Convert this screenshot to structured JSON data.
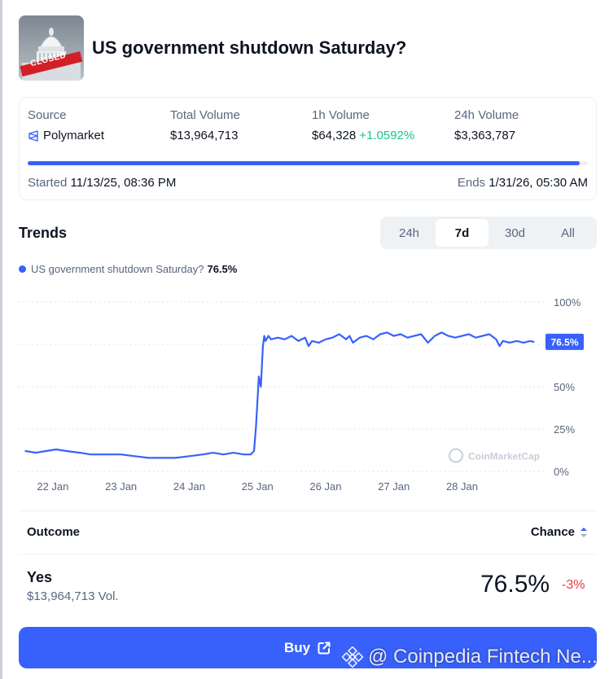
{
  "market": {
    "title": "US government shutdown Saturday?",
    "thumbnail_badge": "CLOSED"
  },
  "info": {
    "source_label": "Source",
    "source_value": "Polymarket",
    "total_volume_label": "Total Volume",
    "total_volume_value": "$13,964,713",
    "h1_volume_label": "1h Volume",
    "h1_volume_value": "$64,328",
    "h1_volume_change": "+1.0592%",
    "h24_volume_label": "24h Volume",
    "h24_volume_value": "$3,363,787",
    "progress_fraction": 0.985,
    "started_label": "Started",
    "started_value": "11/13/25, 08:36 PM",
    "ends_label": "Ends",
    "ends_value": "1/31/26, 05:30 AM"
  },
  "trends": {
    "title": "Trends",
    "tabs": [
      "24h",
      "7d",
      "30d",
      "All"
    ],
    "active_tab": "7d",
    "legend_name": "US government shutdown Saturday?",
    "legend_value": "76.5%"
  },
  "chart_data": {
    "type": "line",
    "x_ticks": [
      "22 Jan",
      "23 Jan",
      "24 Jan",
      "25 Jan",
      "26 Jan",
      "27 Jan",
      "28 Jan"
    ],
    "y_ticks": [
      "0%",
      "25%",
      "50%",
      "100%"
    ],
    "ylim": [
      0,
      100
    ],
    "grid": true,
    "last_value_label": "76.5%",
    "watermark": "CoinMarketCap",
    "line_color": "#3861fb",
    "series": [
      {
        "name": "US government shutdown Saturday?",
        "x": [
          21.6,
          21.75,
          21.9,
          22.05,
          22.2,
          22.4,
          22.55,
          22.75,
          23.0,
          23.2,
          23.4,
          23.6,
          23.8,
          24.0,
          24.2,
          24.35,
          24.5,
          24.65,
          24.8,
          24.9,
          24.95,
          24.98,
          25.02,
          25.05,
          25.08,
          25.1,
          25.12,
          25.16,
          25.2,
          25.3,
          25.4,
          25.5,
          25.6,
          25.7,
          25.75,
          25.8,
          25.9,
          26.0,
          26.1,
          26.2,
          26.3,
          26.35,
          26.4,
          26.5,
          26.6,
          26.7,
          26.8,
          26.9,
          27.0,
          27.1,
          27.2,
          27.3,
          27.4,
          27.5,
          27.6,
          27.7,
          27.8,
          27.9,
          28.0,
          28.1,
          28.2,
          28.3,
          28.4,
          28.5,
          28.55,
          28.6,
          28.7,
          28.8,
          28.9,
          29.0,
          29.05
        ],
        "y": [
          12,
          11,
          12,
          13,
          12,
          11,
          10,
          10,
          10,
          9,
          8,
          8,
          8,
          9,
          10,
          11,
          10,
          11,
          10,
          10,
          12,
          27,
          56,
          50,
          74,
          80,
          77,
          80,
          78,
          79,
          78,
          80,
          77,
          79,
          74,
          77,
          76,
          78,
          79,
          81,
          78,
          80,
          76,
          79,
          80,
          78,
          81,
          82,
          80,
          81,
          79,
          80,
          81,
          76,
          80,
          82,
          80,
          79,
          80,
          81,
          79,
          80,
          81,
          78,
          74,
          77,
          76,
          77,
          76,
          77,
          76.5
        ]
      }
    ]
  },
  "outcomes": {
    "outcome_header": "Outcome",
    "chance_header": "Chance",
    "rows": [
      {
        "label": "Yes",
        "volume": "$13,964,713 Vol.",
        "chance": "76.5%",
        "delta": "-3%"
      }
    ]
  },
  "buy": {
    "label": "Buy"
  },
  "watermark": {
    "text": "@ Coinpedia Fintech Ne..."
  }
}
